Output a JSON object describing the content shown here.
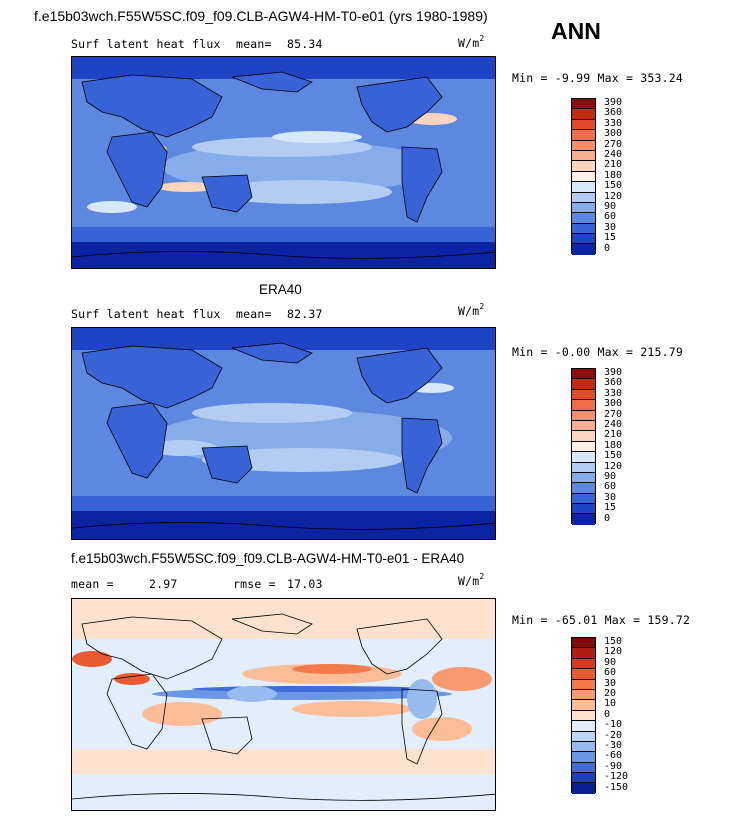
{
  "header": {
    "case_title": "f.e15b03wch.F55W5SC.f09_f09.CLB-AGW4-HM-T0-e01 (yrs 1980-1989)",
    "season": "ANN"
  },
  "panels": [
    {
      "label": "Surf latent heat flux",
      "stat_label": "mean=",
      "stat_value": "85.34",
      "units": "W/m",
      "units_sup": "2",
      "minmax": "Min =   -9.99 Max = 353.24",
      "colorbar_labels": [
        "390",
        "360",
        "330",
        "300",
        "270",
        "240",
        "210",
        "180",
        "150",
        "120",
        "90",
        "60",
        "30",
        "15",
        "0"
      ],
      "colorbar_colors": [
        "#8e0c0c",
        "#c42a0f",
        "#e2492a",
        "#ef6d49",
        "#f58e6a",
        "#f8af90",
        "#fbd5bd",
        "#fdf1e6",
        "#d8e8fb",
        "#b3cdf2",
        "#86acea",
        "#5d88e0",
        "#3863d6",
        "#1f43c5",
        "#0c23a3"
      ]
    },
    {
      "title": "ERA40",
      "label": "Surf latent heat flux",
      "stat_label": "mean=",
      "stat_value": "82.37",
      "units": "W/m",
      "units_sup": "2",
      "minmax": "Min =   -0.00 Max = 215.79",
      "colorbar_labels": [
        "390",
        "360",
        "330",
        "300",
        "270",
        "240",
        "210",
        "180",
        "150",
        "120",
        "90",
        "60",
        "30",
        "15",
        "0"
      ],
      "colorbar_colors": [
        "#8e0c0c",
        "#c42a0f",
        "#e2492a",
        "#ef6d49",
        "#f58e6a",
        "#f8af90",
        "#fbd5bd",
        "#fdf1e6",
        "#d8e8fb",
        "#b3cdf2",
        "#86acea",
        "#5d88e0",
        "#3863d6",
        "#1f43c5",
        "#0c23a3"
      ]
    },
    {
      "title": "f.e15b03wch.F55W5SC.f09_f09.CLB-AGW4-HM-T0-e01 - ERA40",
      "stat_label": "mean =",
      "stat_value": "2.97",
      "stat2_label": "rmse =",
      "stat2_value": "17.03",
      "units": "W/m",
      "units_sup": "2",
      "minmax": "Min = -65.01 Max = 159.72",
      "colorbar_labels": [
        "150",
        "120",
        "90",
        "60",
        "30",
        "20",
        "10",
        "0",
        "-10",
        "-20",
        "-30",
        "-60",
        "-90",
        "-120",
        "-150"
      ],
      "colorbar_colors": [
        "#7d0a0a",
        "#b21b12",
        "#d6391f",
        "#ea5a32",
        "#f37a4d",
        "#f89a70",
        "#fbbc98",
        "#fde2cf",
        "#e2eefc",
        "#bcd4f5",
        "#98bbef",
        "#6b96e4",
        "#3f6cd8",
        "#1d3fbf",
        "#0a1f94"
      ]
    }
  ]
}
